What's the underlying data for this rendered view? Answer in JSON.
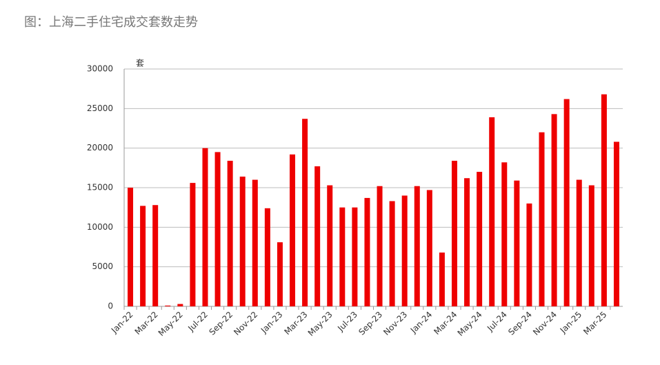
{
  "chart_data": {
    "type": "bar",
    "title": "图：上海二手住宅成交套数走势",
    "y_label": "套",
    "categories": [
      "Jan-22",
      null,
      "Mar-22",
      null,
      "May-22",
      null,
      "Jul-22",
      null,
      "Sep-22",
      null,
      "Nov-22",
      null,
      "Jan-23",
      null,
      "Mar-23",
      null,
      "May-23",
      null,
      "Jul-23",
      null,
      "Sep-23",
      null,
      "Nov-23",
      null,
      "Jan-24",
      null,
      "Mar-24",
      null,
      "May-24",
      null,
      "Jul-24",
      null,
      "Sep-24",
      null,
      "Nov-24",
      null,
      "Jan-25",
      null,
      "Mar-25",
      null
    ],
    "values": [
      15000,
      12700,
      12800,
      100,
      300,
      15600,
      20000,
      19500,
      18400,
      16400,
      16000,
      12400,
      8100,
      19200,
      23700,
      17700,
      15300,
      12500,
      12500,
      13700,
      15200,
      13300,
      14000,
      15200,
      14700,
      6800,
      18400,
      16200,
      17000,
      23900,
      18200,
      15900,
      13000,
      22000,
      24300,
      26200,
      16000,
      15300,
      26800,
      20800
    ],
    "color": "#ee0000",
    "ylim": [
      0,
      30000
    ],
    "yticks": [
      0,
      5000,
      10000,
      15000,
      20000,
      25000,
      30000
    ],
    "grid": true
  }
}
